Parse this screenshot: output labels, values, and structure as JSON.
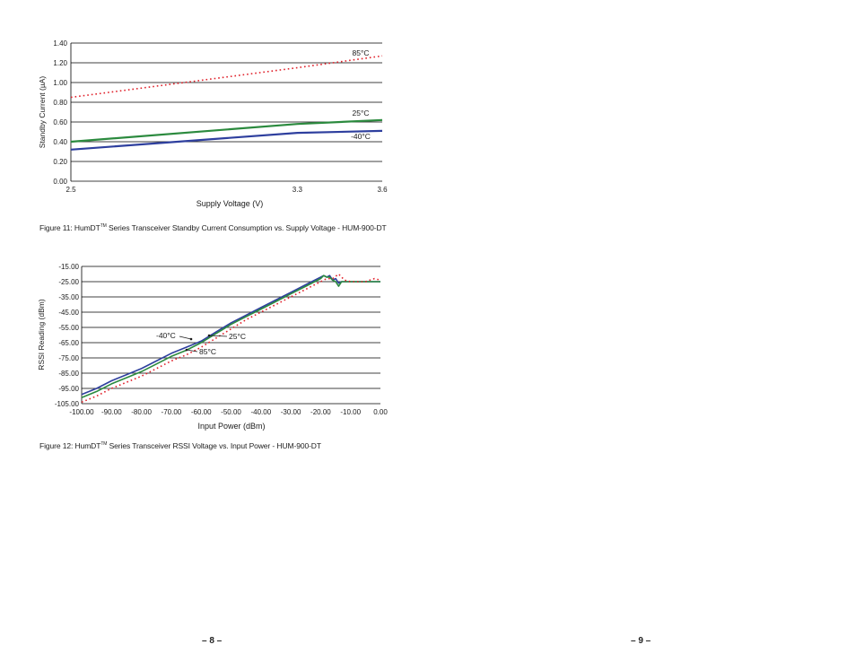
{
  "figure11": {
    "caption_prefix": "Figure 11: HumDT",
    "caption_tm": "TM",
    "caption_suffix": " Series Transceiver Standby Current Consumption vs. Supply Voltage - HUM-900-DT"
  },
  "figure12": {
    "caption_prefix": "Figure 12: HumDT",
    "caption_tm": "TM",
    "caption_suffix": " Series Transceiver RSSI Voltage vs. Input Power - HUM-900-DT"
  },
  "pages": {
    "left": "– 8 –",
    "right": "– 9 –"
  },
  "colors": {
    "hot": "#e0202a",
    "room": "#2b8a3e",
    "cold": "#2e3f9e",
    "grid": "#000000"
  },
  "chart_data": [
    {
      "type": "line",
      "title": "",
      "xlabel": "Supply Voltage (V)",
      "ylabel": "Standby Current (µA)",
      "xlim": [
        2.5,
        3.6
      ],
      "ylim": [
        0,
        1.4
      ],
      "x_ticks": [
        "2.5",
        "3.3",
        "3.6"
      ],
      "y_ticks": [
        "0.00",
        "0.20",
        "0.40",
        "0.60",
        "0.80",
        "1.00",
        "1.20",
        "1.40"
      ],
      "grid": true,
      "series": [
        {
          "name": "85°C",
          "style": "dotted",
          "x": [
            2.5,
            3.3,
            3.6
          ],
          "y": [
            0.85,
            1.15,
            1.27
          ]
        },
        {
          "name": "25°C",
          "style": "solid",
          "x": [
            2.5,
            3.3,
            3.6
          ],
          "y": [
            0.4,
            0.58,
            0.62
          ]
        },
        {
          "name": "-40°C",
          "style": "solid",
          "x": [
            2.5,
            3.3,
            3.6
          ],
          "y": [
            0.32,
            0.49,
            0.51
          ]
        }
      ]
    },
    {
      "type": "line",
      "title": "",
      "xlabel": "Input Power (dBm)",
      "ylabel": "RSSI Reading (dBm)",
      "xlim": [
        -100,
        0
      ],
      "ylim": [
        -105,
        -15
      ],
      "x_ticks": [
        "-100.00",
        "-90.00",
        "-80.00",
        "-70.00",
        "-60.00",
        "-50.00",
        "-40.00",
        "-30.00",
        "-20.00",
        "-10.00",
        "0.00"
      ],
      "y_ticks": [
        "-15.00",
        "-25.00",
        "-35.00",
        "-45.00",
        "-55.00",
        "-65.00",
        "-75.00",
        "-85.00",
        "-95.00",
        "-105.00"
      ],
      "grid": true,
      "series": [
        {
          "name": "-40°C",
          "style": "solid",
          "x": [
            -100,
            -95,
            -90,
            -85,
            -80,
            -75,
            -70,
            -65,
            -60,
            -55,
            -50,
            -45,
            -40,
            -35,
            -30,
            -25,
            -20,
            -19,
            -18,
            -17,
            -16,
            -15,
            -14,
            -13,
            -10,
            -5,
            0
          ],
          "y": [
            -99,
            -95,
            -90,
            -86,
            -82,
            -77,
            -72,
            -68,
            -64,
            -58,
            -52,
            -47,
            -42,
            -37,
            -32,
            -27,
            -22,
            -21,
            -22,
            -21,
            -24,
            -23,
            -26,
            -25,
            -25,
            -25,
            -25
          ]
        },
        {
          "name": "25°C",
          "style": "solid",
          "x": [
            -100,
            -95,
            -90,
            -85,
            -80,
            -75,
            -70,
            -65,
            -60,
            -55,
            -50,
            -45,
            -40,
            -35,
            -30,
            -25,
            -20,
            -19,
            -18,
            -17,
            -16,
            -15,
            -14,
            -13,
            -10,
            -5,
            0
          ],
          "y": [
            -101,
            -97,
            -92,
            -88,
            -84,
            -79,
            -74,
            -70,
            -65,
            -59,
            -53,
            -48,
            -43,
            -38,
            -33,
            -28,
            -23,
            -21,
            -22,
            -22,
            -24,
            -25,
            -28,
            -25,
            -25,
            -25,
            -25
          ]
        },
        {
          "name": "85°C",
          "style": "dotted",
          "x": [
            -100,
            -95,
            -90,
            -85,
            -80,
            -75,
            -70,
            -65,
            -60,
            -55,
            -50,
            -45,
            -40,
            -35,
            -30,
            -25,
            -20,
            -18,
            -16,
            -14,
            -12,
            -10,
            -5,
            -2,
            0
          ],
          "y": [
            -104,
            -100,
            -95,
            -91,
            -87,
            -82,
            -77,
            -73,
            -68,
            -62,
            -56,
            -50,
            -45,
            -40,
            -35,
            -30,
            -25,
            -23,
            -23,
            -20,
            -24,
            -25,
            -25,
            -23,
            -24
          ]
        }
      ],
      "annotations": [
        "-40°C",
        "25°C",
        "85°C"
      ]
    }
  ]
}
